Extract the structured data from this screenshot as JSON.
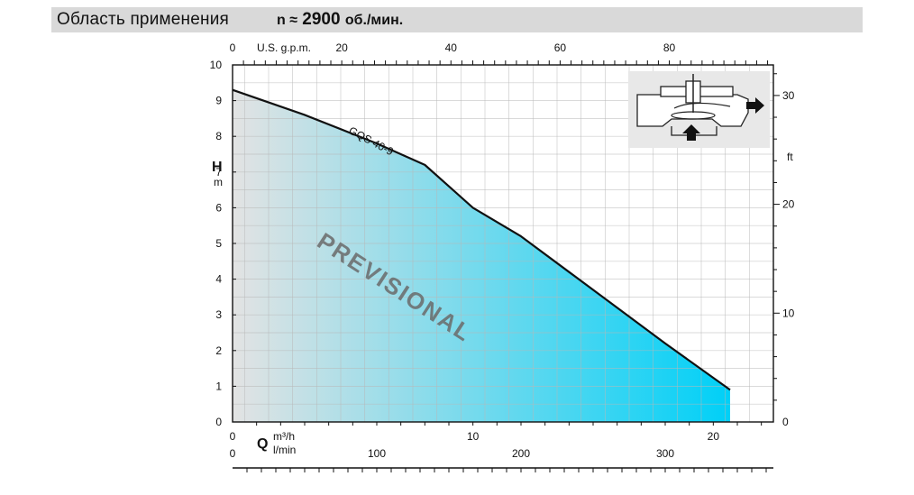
{
  "header": {
    "title": "Область применения",
    "speed_symbol": "n ≈",
    "speed_value": "2900",
    "speed_unit": "об./мин."
  },
  "colors": {
    "fill_start": "#e3e3e3",
    "fill_end": "#00d0f7",
    "curve": "#111111",
    "grid": "#b8b8b8"
  },
  "inset_icon": "pump-cross-section-icon",
  "watermark": "PREVISIONAL",
  "chart_data": {
    "type": "area",
    "grid": true,
    "x_range_m3h": [
      0,
      22.5
    ],
    "y_range_m": [
      0,
      10
    ],
    "primary_x_label": "Q",
    "units_m3h": "m³/h",
    "units_lmin": "l/min",
    "y_label": "H",
    "y_unit": "m",
    "right_unit": "ft",
    "top_unit": "U.S. g.p.m.",
    "series": [
      {
        "name": "GQS 40-9",
        "x": [
          0,
          3,
          6,
          8,
          10,
          12,
          14,
          16,
          18,
          20.7
        ],
        "y": [
          9.3,
          8.6,
          7.8,
          7.2,
          6.0,
          5.2,
          4.2,
          3.2,
          2.2,
          0.9
        ]
      }
    ],
    "y_ticks": [
      "0",
      "1",
      "2",
      "3",
      "4",
      "5",
      "6",
      "7",
      "8",
      "9",
      "10"
    ],
    "y_tick_values": [
      0,
      1,
      2,
      3,
      4,
      5,
      6,
      7,
      8,
      9,
      10
    ],
    "y_ticks_ft": [
      "0",
      "10",
      "20",
      "30"
    ],
    "y_tick_values_ft": [
      0,
      10,
      20,
      30
    ],
    "x_ticks_m3h": [
      "0",
      "10",
      "20"
    ],
    "x_tick_values_m3h": [
      0,
      10,
      20
    ],
    "x_ticks_lmin": [
      "0",
      "100",
      "200",
      "300"
    ],
    "x_tick_values_lmin": [
      0,
      100,
      200,
      300
    ],
    "x_ticks_gpm": [
      "0",
      "20",
      "40",
      "60",
      "80"
    ],
    "x_tick_values_gpm": [
      0,
      20,
      40,
      60,
      80
    ]
  }
}
